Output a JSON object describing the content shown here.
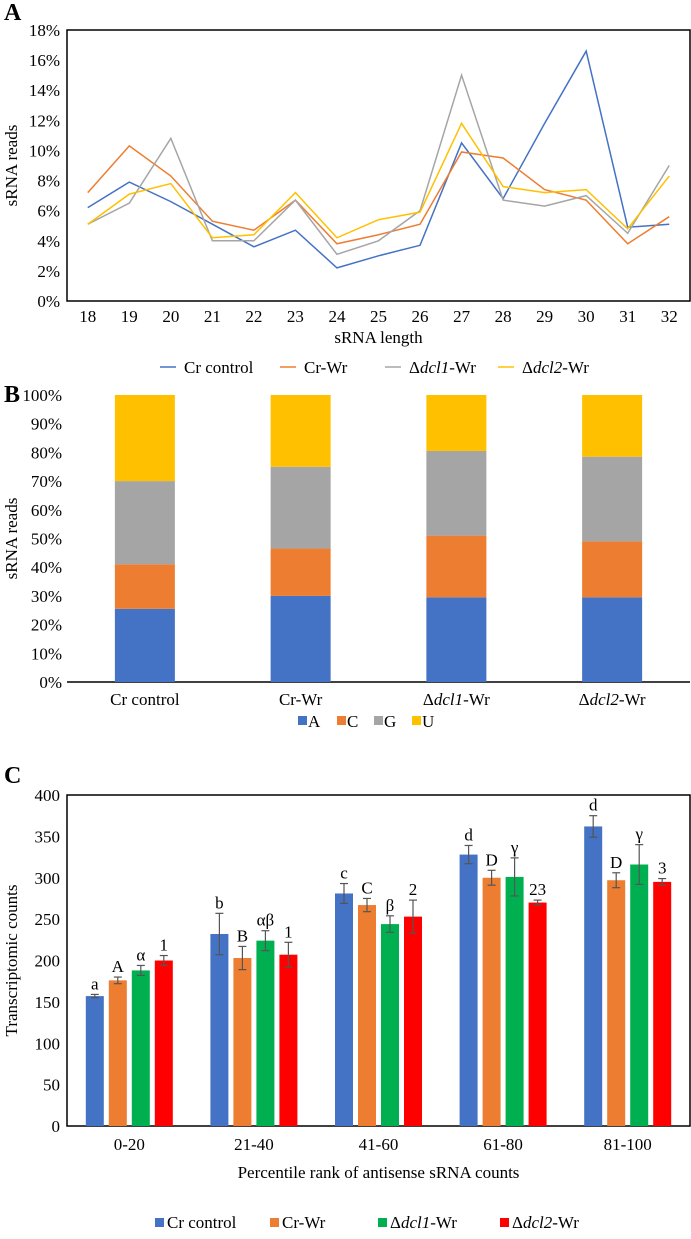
{
  "chart_data": [
    {
      "panel": "A",
      "type": "line",
      "xlabel": "sRNA length",
      "ylabel": "sRNA reads",
      "ylim": [
        0,
        18
      ],
      "yticks": [
        "0%",
        "2%",
        "4%",
        "6%",
        "8%",
        "10%",
        "12%",
        "14%",
        "16%",
        "18%"
      ],
      "x": [
        "18",
        "19",
        "20",
        "21",
        "22",
        "23",
        "24",
        "25",
        "26",
        "27",
        "28",
        "29",
        "30",
        "31",
        "32"
      ],
      "legend_position": "bottom",
      "series": [
        {
          "name": "Cr control",
          "italic": "",
          "suffix": "",
          "color": "#4472C4",
          "values": [
            6.2,
            7.9,
            6.6,
            5.1,
            3.6,
            4.7,
            2.2,
            3.0,
            3.7,
            10.5,
            6.8,
            11.8,
            16.6,
            4.9,
            5.1
          ]
        },
        {
          "name": "Cr-Wr",
          "color": "#ED7D31",
          "values": [
            7.2,
            10.3,
            8.3,
            5.3,
            4.7,
            6.7,
            3.8,
            4.4,
            5.1,
            9.9,
            9.5,
            7.4,
            6.7,
            3.8,
            5.6
          ]
        },
        {
          "name": "Δdcl1-Wr",
          "color": "#A5A5A5",
          "values": [
            5.1,
            6.5,
            10.8,
            4.0,
            4.0,
            6.7,
            3.1,
            4.0,
            6.0,
            15.0,
            6.7,
            6.3,
            7.0,
            4.5,
            9.0
          ]
        },
        {
          "name": "Δdcl2-Wr",
          "color": "#FFC000",
          "values": [
            5.1,
            7.1,
            7.8,
            4.2,
            4.4,
            7.2,
            4.2,
            5.4,
            5.9,
            11.8,
            7.6,
            7.2,
            7.4,
            4.8,
            8.3
          ]
        }
      ]
    },
    {
      "panel": "B",
      "type": "bar",
      "stacked": true,
      "ylabel": "sRNA reads",
      "ylim": [
        0,
        100
      ],
      "yticks": [
        "0%",
        "10%",
        "20%",
        "30%",
        "40%",
        "50%",
        "60%",
        "70%",
        "80%",
        "90%",
        "100%"
      ],
      "categories": [
        "Cr control",
        "Cr-Wr",
        "Δdcl1-Wr",
        "Δdcl2-Wr"
      ],
      "legend_position": "bottom",
      "series": [
        {
          "name": "A",
          "color": "#4472C4",
          "values": [
            25.5,
            30,
            29.5,
            29.5
          ]
        },
        {
          "name": "C",
          "color": "#ED7D31",
          "values": [
            15.5,
            16.5,
            21.5,
            19.5
          ]
        },
        {
          "name": "G",
          "color": "#A5A5A5",
          "values": [
            29,
            28.5,
            29.5,
            29.5
          ]
        },
        {
          "name": "U",
          "color": "#FFC000",
          "values": [
            30,
            25,
            19.5,
            21.5
          ]
        }
      ]
    },
    {
      "panel": "C",
      "type": "bar",
      "xlabel": "Percentile rank of antisense sRNA counts",
      "ylabel": "Transcriptomic counts",
      "ylim": [
        0,
        400
      ],
      "yticks": [
        "0",
        "50",
        "100",
        "150",
        "200",
        "250",
        "300",
        "350",
        "400"
      ],
      "categories": [
        "0-20",
        "21-40",
        "41-60",
        "61-80",
        "81-100"
      ],
      "legend_position": "bottom",
      "series": [
        {
          "name": "Cr control",
          "color": "#4472C4",
          "values": [
            157,
            232,
            281,
            328,
            362
          ],
          "errors": [
            2,
            25,
            12,
            11,
            13
          ],
          "letters": [
            "a",
            "b",
            "c",
            "d",
            "d"
          ]
        },
        {
          "name": "Cr-Wr",
          "color": "#ED7D31",
          "values": [
            176,
            203,
            267,
            300,
            297
          ],
          "errors": [
            4,
            14,
            8,
            9,
            9
          ],
          "letters": [
            "A",
            "B",
            "C",
            "D",
            "D"
          ]
        },
        {
          "name": "Δdcl1-Wr",
          "color": "#00B050",
          "values": [
            188,
            224,
            244,
            301,
            316
          ],
          "errors": [
            6,
            12,
            10,
            23,
            24
          ],
          "letters": [
            "α",
            "αβ",
            "β",
            "γ",
            "γ"
          ]
        },
        {
          "name": "Δdcl2-Wr",
          "color": "#FF0000",
          "values": [
            200,
            207,
            253,
            270,
            295
          ],
          "errors": [
            6,
            15,
            20,
            3,
            4
          ],
          "letters": [
            "1",
            "1",
            "2",
            "23",
            "3"
          ]
        }
      ]
    }
  ]
}
